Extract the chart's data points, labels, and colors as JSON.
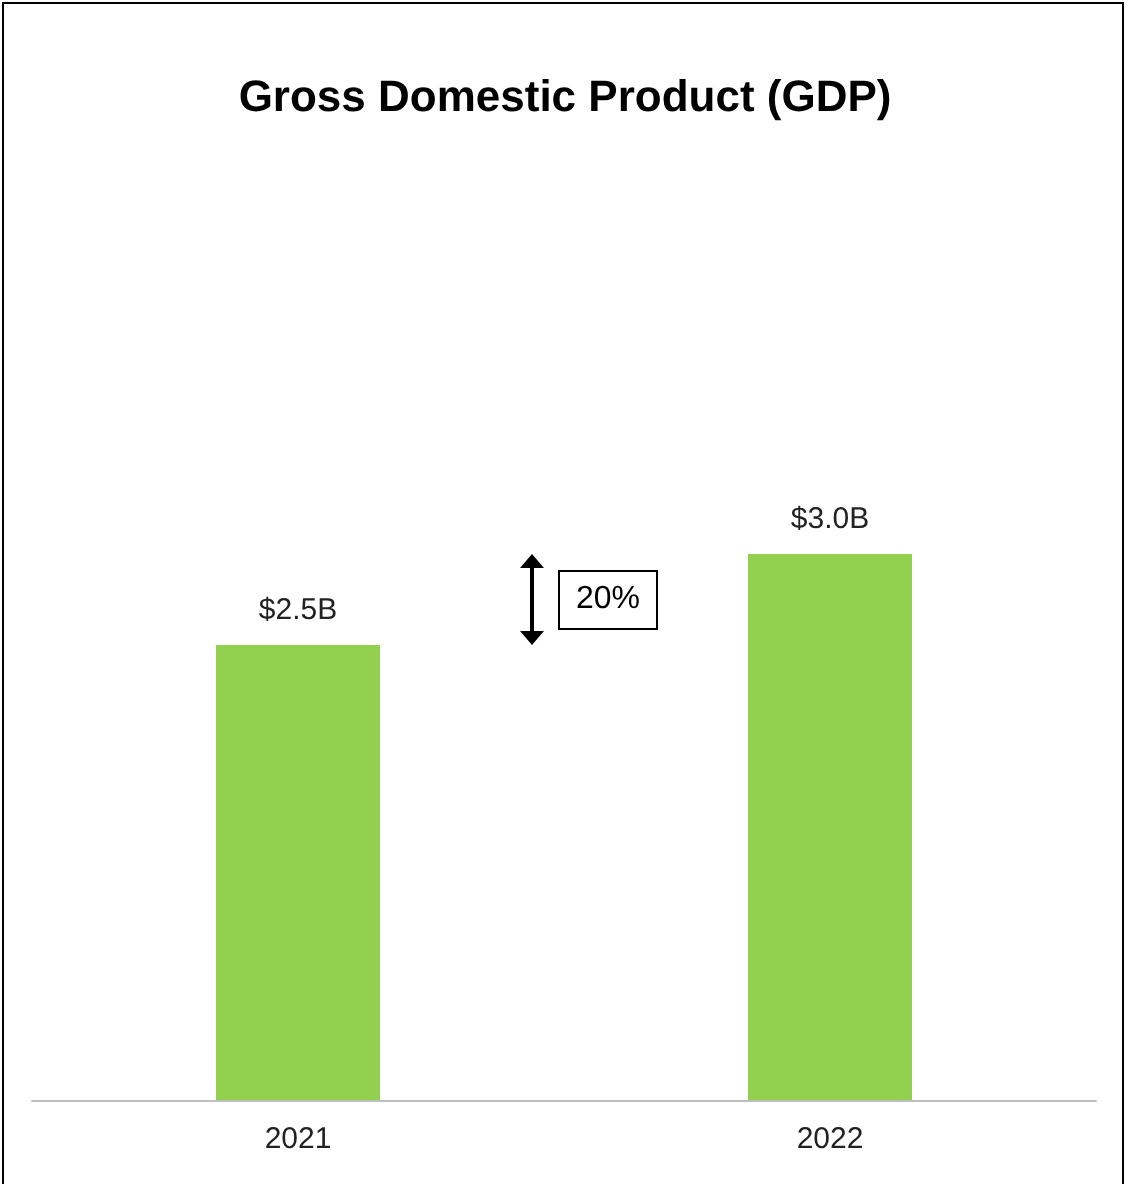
{
  "chart_data": {
    "type": "bar",
    "title": "Gross Domestic Product (GDP)",
    "categories": [
      "2021",
      "2022"
    ],
    "values": [
      2.5,
      3.0
    ],
    "value_labels": [
      "$2.5B",
      "$3.0B"
    ],
    "color": "#92d050",
    "tick_labels": "x",
    "annotations": [
      "20%"
    ]
  }
}
